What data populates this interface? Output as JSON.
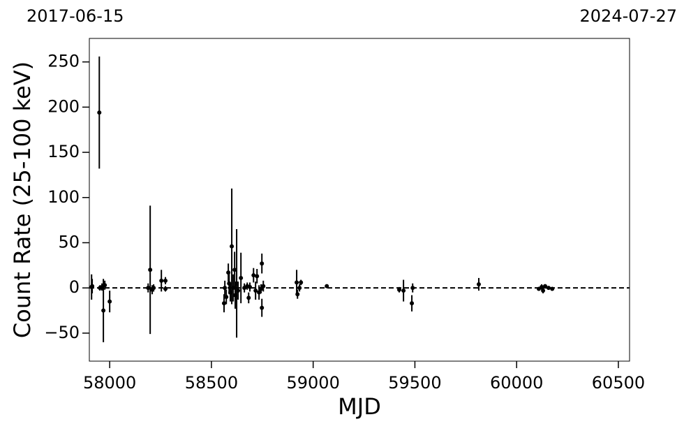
{
  "chart_data": {
    "type": "scatter",
    "annotations": {
      "left": "2017-06-15",
      "right": "2024-07-27"
    },
    "xlabel": "MJD",
    "ylabel": "Count Rate (25-100 keV)",
    "x": [
      57911,
      57914,
      57949,
      57952,
      57962,
      57969,
      57976,
      58000,
      58189,
      58199,
      58209,
      58216,
      58254,
      58274,
      58274,
      58562,
      58566,
      58573,
      58583,
      58587,
      58593,
      58600,
      58607,
      58614,
      58617,
      58624,
      58631,
      58645,
      58662,
      58676,
      58683,
      58689,
      58707,
      58717,
      58724,
      58734,
      58744,
      58748,
      58748,
      58755,
      58919,
      58923,
      58933,
      58940,
      59067,
      59423,
      59444,
      59485,
      59489,
      59814,
      60109,
      60123,
      60130,
      60140,
      60157,
      60175
    ],
    "values": [
      1,
      2,
      194,
      0,
      1,
      -25,
      3,
      -15,
      0,
      20,
      -2,
      0,
      8,
      8,
      -1,
      -17,
      0,
      -10,
      17,
      5,
      -5,
      46,
      0,
      20,
      -8,
      5,
      -3,
      11,
      0,
      2,
      -11,
      1,
      14,
      -3,
      13,
      -5,
      -1,
      27,
      -22,
      2,
      6,
      -7,
      0,
      6,
      2,
      -2,
      -3,
      -17,
      0,
      4,
      -1,
      1,
      -3,
      2,
      0,
      -1
    ],
    "errors": [
      14,
      8,
      62,
      3,
      4,
      35,
      5,
      12,
      5,
      71,
      5,
      4,
      12,
      4,
      3,
      10,
      8,
      8,
      10,
      12,
      10,
      64,
      15,
      20,
      15,
      60,
      10,
      28,
      5,
      4,
      6,
      5,
      8,
      10,
      8,
      8,
      5,
      11,
      10,
      6,
      14,
      5,
      4,
      3,
      2,
      3,
      12,
      9,
      5,
      7,
      2,
      3,
      3,
      2,
      2,
      2
    ],
    "color": "#000000",
    "hline": 0,
    "xlim": [
      57900,
      60555
    ],
    "ylim": [
      -81,
      276
    ],
    "xticks": [
      58000,
      58500,
      59000,
      59500,
      60000,
      60500
    ],
    "yticks": [
      {
        "value": -50,
        "label": "−50"
      },
      0,
      50,
      100,
      150,
      200,
      250
    ]
  }
}
